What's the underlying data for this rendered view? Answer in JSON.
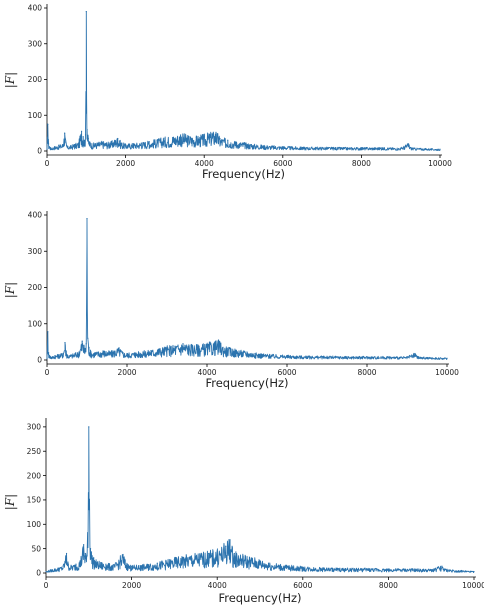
{
  "chart_data": [
    {
      "type": "line",
      "xlabel": "Frequency(Hz)",
      "ylabel": "|F|",
      "xlim": [
        0,
        10000
      ],
      "ylim": [
        0,
        400
      ],
      "xticks": [
        0,
        2000,
        4000,
        6000,
        8000,
        10000
      ],
      "yticks": [
        0,
        100,
        200,
        300,
        400
      ],
      "line_color": "#2b73ae",
      "series": [
        {
          "x": [
            0,
            20,
            40,
            60,
            80,
            100,
            200,
            300,
            400,
            450,
            480,
            500,
            520,
            600,
            700,
            800,
            880,
            920,
            950,
            980,
            1000,
            1020,
            1050,
            1100,
            1200,
            1400,
            1600,
            1800,
            1850,
            1900,
            2000,
            2200,
            2400,
            2600,
            2800,
            3000,
            3200,
            3400,
            3600,
            3800,
            4000,
            4200,
            4300,
            4400,
            4600,
            4800,
            5000,
            5200,
            5600,
            6000,
            6500,
            7000,
            7500,
            8000,
            8500,
            9000,
            9200,
            9250,
            9300,
            9500,
            10000
          ],
          "y": [
            5,
            75,
            20,
            12,
            10,
            8,
            12,
            15,
            18,
            50,
            25,
            15,
            12,
            14,
            18,
            22,
            55,
            40,
            30,
            45,
            390,
            60,
            35,
            22,
            20,
            25,
            22,
            35,
            28,
            22,
            18,
            20,
            22,
            26,
            30,
            35,
            38,
            45,
            40,
            38,
            42,
            48,
            52,
            35,
            30,
            25,
            22,
            18,
            14,
            12,
            10,
            10,
            9,
            9,
            9,
            8,
            20,
            10,
            8,
            7,
            5
          ]
        }
      ]
    },
    {
      "type": "line",
      "xlabel": "Frequency(Hz)",
      "ylabel": "|F|",
      "xlim": [
        0,
        10000
      ],
      "ylim": [
        0,
        400
      ],
      "xticks": [
        0,
        2000,
        4000,
        6000,
        8000,
        10000
      ],
      "yticks": [
        0,
        100,
        200,
        300,
        400
      ],
      "line_color": "#2b73ae",
      "series": [
        {
          "x": [
            0,
            20,
            40,
            60,
            80,
            100,
            200,
            300,
            400,
            450,
            480,
            500,
            520,
            600,
            700,
            800,
            880,
            920,
            950,
            980,
            1000,
            1020,
            1050,
            1100,
            1200,
            1400,
            1600,
            1800,
            1850,
            1900,
            2000,
            2200,
            2400,
            2600,
            2800,
            3000,
            3200,
            3400,
            3600,
            3800,
            4000,
            4200,
            4300,
            4400,
            4600,
            4800,
            5000,
            5200,
            5600,
            6000,
            6500,
            7000,
            7500,
            8000,
            8500,
            9000,
            9200,
            9250,
            9300,
            9500,
            10000
          ],
          "y": [
            5,
            78,
            20,
            12,
            10,
            8,
            12,
            15,
            18,
            48,
            25,
            15,
            12,
            14,
            18,
            22,
            52,
            40,
            30,
            45,
            390,
            60,
            35,
            22,
            20,
            25,
            22,
            32,
            26,
            20,
            18,
            20,
            22,
            26,
            30,
            35,
            38,
            45,
            40,
            38,
            42,
            46,
            50,
            35,
            30,
            25,
            22,
            18,
            14,
            12,
            10,
            10,
            9,
            9,
            9,
            8,
            18,
            10,
            8,
            7,
            5
          ]
        }
      ]
    },
    {
      "type": "line",
      "xlabel": "Frequency(Hz)",
      "ylabel": "|F|",
      "xlim": [
        0,
        10000
      ],
      "ylim": [
        0,
        310
      ],
      "xticks": [
        0,
        2000,
        4000,
        6000,
        8000,
        10000
      ],
      "yticks": [
        0,
        50,
        100,
        150,
        200,
        250,
        300
      ],
      "line_color": "#2b73ae",
      "series": [
        {
          "x": [
            0,
            100,
            200,
            300,
            400,
            480,
            520,
            600,
            700,
            800,
            880,
            920,
            960,
            1000,
            1040,
            1100,
            1200,
            1400,
            1600,
            1800,
            1850,
            1900,
            2000,
            2200,
            2400,
            2600,
            2800,
            3000,
            3200,
            3400,
            3600,
            3800,
            4000,
            4200,
            4300,
            4350,
            4400,
            4600,
            4800,
            5000,
            5200,
            5600,
            6000,
            6500,
            7000,
            7500,
            8000,
            8500,
            9000,
            9250,
            9300,
            9500,
            10000
          ],
          "y": [
            3,
            6,
            8,
            10,
            14,
            40,
            18,
            14,
            18,
            25,
            58,
            40,
            35,
            300,
            50,
            30,
            22,
            18,
            16,
            38,
            25,
            18,
            14,
            15,
            17,
            20,
            24,
            28,
            32,
            35,
            38,
            40,
            45,
            55,
            68,
            50,
            40,
            35,
            30,
            25,
            20,
            15,
            12,
            10,
            9,
            9,
            8,
            8,
            7,
            14,
            8,
            6,
            3
          ]
        }
      ]
    }
  ]
}
